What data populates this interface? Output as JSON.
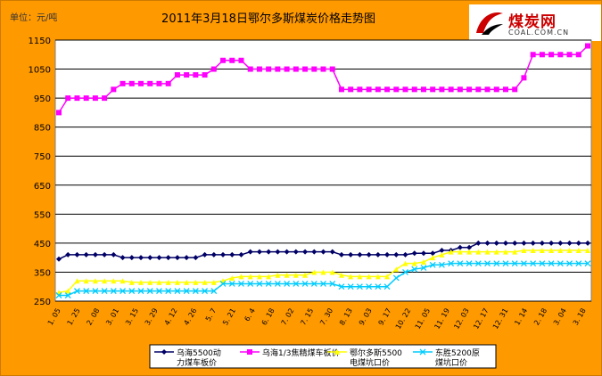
{
  "chart_data": {
    "type": "line",
    "title": "2011年3月18日鄂尔多斯煤炭价格走势图",
    "unit_label": "单位：元/吨",
    "ylim": [
      250,
      1150
    ],
    "ytick_step": 100,
    "grid": "horizontal",
    "legend_position": "bottom",
    "xtick_labels": [
      "1. 05",
      "1. 25",
      "2. 08",
      "3. 01",
      "3. 15",
      "3. 29",
      "4. 12",
      "4. 26",
      "5. 7",
      "5. 21",
      "6. 4",
      "6. 18",
      "7. 02",
      "7. 15",
      "7. 30",
      "8. 13",
      "9. 03",
      "9. 17",
      "10. 22",
      "11. 05",
      "11. 19",
      "12. 03",
      "12. 17",
      "12. 31",
      "1. 14",
      "2. 18",
      "3. 04",
      "3. 18"
    ],
    "series": [
      {
        "name": "乌海5500动力煤车板价",
        "color": "#000066",
        "marker": "diamond",
        "values": [
          395,
          410,
          410,
          410,
          410,
          410,
          410,
          400,
          400,
          400,
          400,
          400,
          400,
          400,
          400,
          400,
          410,
          410,
          410,
          410,
          410,
          420,
          420,
          420,
          420,
          420,
          420,
          420,
          420,
          420,
          420,
          410,
          410,
          410,
          410,
          410,
          410,
          410,
          410,
          415,
          415,
          415,
          425,
          425,
          435,
          435,
          450,
          450,
          450,
          450,
          450,
          450,
          450,
          450,
          450,
          450,
          450,
          450,
          450
        ]
      },
      {
        "name": "乌海1/3焦精煤车板价",
        "color": "#ff00ff",
        "marker": "square",
        "values": [
          900,
          950,
          950,
          950,
          950,
          950,
          980,
          1000,
          1000,
          1000,
          1000,
          1000,
          1000,
          1030,
          1030,
          1030,
          1030,
          1050,
          1080,
          1080,
          1080,
          1050,
          1050,
          1050,
          1050,
          1050,
          1050,
          1050,
          1050,
          1050,
          1050,
          980,
          980,
          980,
          980,
          980,
          980,
          980,
          980,
          980,
          980,
          980,
          980,
          980,
          980,
          980,
          980,
          980,
          980,
          980,
          980,
          1020,
          1100,
          1100,
          1100,
          1100,
          1100,
          1100,
          1130
        ]
      },
      {
        "name": "鄂尔多斯5500电煤坑口价",
        "color": "#ffff00",
        "marker": "triangle",
        "values": [
          280,
          285,
          320,
          320,
          320,
          320,
          320,
          320,
          315,
          315,
          315,
          315,
          315,
          315,
          315,
          315,
          315,
          315,
          320,
          330,
          335,
          335,
          335,
          335,
          340,
          340,
          340,
          340,
          350,
          350,
          350,
          340,
          335,
          335,
          335,
          335,
          335,
          360,
          380,
          380,
          385,
          400,
          410,
          420,
          420,
          420,
          420,
          420,
          420,
          420,
          420,
          425,
          425,
          425,
          425,
          425,
          425,
          425,
          425
        ]
      },
      {
        "name": "东胜5200原煤坑口价",
        "color": "#00ccff",
        "marker": "x",
        "values": [
          270,
          270,
          285,
          285,
          285,
          285,
          285,
          285,
          285,
          285,
          285,
          285,
          285,
          285,
          285,
          285,
          285,
          285,
          310,
          310,
          310,
          310,
          310,
          310,
          310,
          310,
          310,
          310,
          310,
          310,
          310,
          300,
          300,
          300,
          300,
          300,
          300,
          330,
          350,
          360,
          365,
          375,
          375,
          380,
          380,
          380,
          380,
          380,
          380,
          380,
          380,
          380,
          380,
          380,
          380,
          380,
          380,
          380,
          380
        ]
      }
    ]
  },
  "logo": {
    "name_cn": "煤炭网",
    "name_en": "COAL.COM.CN"
  }
}
